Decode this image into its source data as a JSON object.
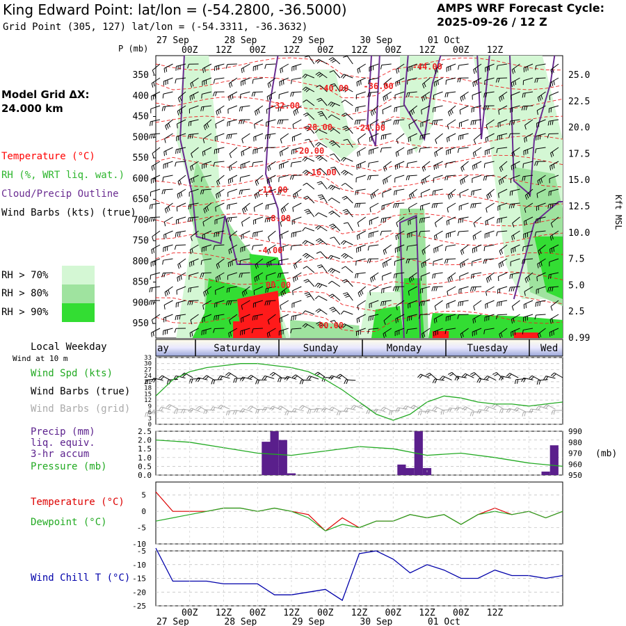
{
  "header": {
    "title": "King Edward Point:  lat/lon = (-54.2800, -36.5000)",
    "subtitle": "Grid Point (305, 127) lat/lon = (-54.3311, -36.3632)",
    "cycle_label": "AMPS WRF Forecast Cycle:",
    "cycle_value": "2025-09-26 / 12  Z"
  },
  "left_panel": {
    "grid_label": "Model Grid ΔX:",
    "grid_value": " 24.000 km",
    "legend_temperature": "Temperature (°C)",
    "legend_rh": "RH (%, WRT liq. wat.)",
    "legend_cloud": "Cloud/Precip Outline",
    "legend_wind": "Wind Barbs (kts) (true)",
    "rh_70": "RH > 70%",
    "rh_80": "RH > 80%",
    "rh_90": "RH > 90%",
    "local_weekday": "Local Weekday",
    "wind_10m": "Wind at 10 m"
  },
  "colors": {
    "temperature": "#ff0000",
    "rh_label": "#2db52d",
    "cloud_outline": "#6a2c91",
    "rh70": "#d4f7d4",
    "rh80": "#9fe39f",
    "rh90": "#33dd33",
    "precip": "#5a1f8c",
    "pressure": "#22aa22",
    "windchill": "#0000aa",
    "grid_barb": "#aaaaaa"
  },
  "time_axis": {
    "top_dates": [
      "27 Sep",
      "28 Sep",
      "29 Sep",
      "30 Sep",
      "01 Oct"
    ],
    "hours": [
      "00Z",
      "12Z",
      "00Z",
      "12Z",
      "00Z",
      "12Z",
      "00Z",
      "12Z",
      "00Z",
      "12Z"
    ],
    "bottom_dates": [
      "27 Sep",
      "28 Sep",
      "29 Sep",
      "30 Sep",
      "01 Oct"
    ],
    "weekdays": [
      "ay",
      "Saturday",
      "Sunday",
      "Monday",
      "Tuesday",
      "Wed"
    ]
  },
  "chart_data": [
    {
      "type": "heatmap",
      "title": "",
      "ylabel": "P (mb)",
      "ylabel_right": "Kft MSL",
      "pressure_ticks": [
        350,
        400,
        450,
        500,
        550,
        600,
        650,
        700,
        750,
        800,
        850,
        900,
        950
      ],
      "height_ticks": [
        "25.0",
        "22.5",
        "20.0",
        "17.5",
        "15.0",
        "12.5",
        "10.0",
        "7.5",
        "5.0",
        "2.5",
        "0.99"
      ],
      "temperature_contour_labels": [
        "-44.00",
        "-40.00",
        "-36.00",
        "-32.00",
        "-28.00",
        "-24.00",
        "-20.00",
        "-16.00",
        "-12.00",
        "-8.00",
        "-4.00",
        "00.00",
        "00.00"
      ]
    },
    {
      "type": "line",
      "title": "",
      "series_labels": [
        "Wind Spd (kts)",
        "Wind Barbs (true)",
        "Wind Barbs (grid)"
      ],
      "y_ticks": [
        0,
        3,
        6,
        9,
        12,
        15,
        18,
        21,
        24,
        27,
        30,
        33
      ],
      "x_hours": [
        0,
        6,
        12,
        18,
        24,
        30,
        36,
        42,
        48,
        54,
        60,
        66,
        72,
        78,
        84,
        90,
        96,
        102,
        108,
        114,
        120,
        126,
        132,
        138,
        144
      ],
      "series": [
        {
          "name": "Wind Spd (kts)",
          "values": [
            14,
            22,
            26,
            28,
            29,
            30,
            30,
            29,
            28,
            26,
            22,
            17,
            11,
            5,
            2,
            5,
            11,
            14,
            13,
            11,
            10,
            10,
            9,
            10,
            11
          ]
        }
      ],
      "ylim": [
        0,
        33
      ]
    },
    {
      "type": "bar",
      "title": "",
      "series_labels": [
        "Precip (mm)",
        "liq. equiv.",
        "3-hr accum",
        "Pressure (mb)"
      ],
      "y_ticks": [
        "0.0",
        "0.5",
        "1.0",
        "1.5",
        "2.0",
        "2.5"
      ],
      "y2_ticks": [
        950,
        960,
        970,
        980,
        990
      ],
      "y2_label": "(mb)",
      "bars": [
        {
          "hour": 39,
          "value": 1.9
        },
        {
          "hour": 42,
          "value": 2.5
        },
        {
          "hour": 45,
          "value": 2.0
        },
        {
          "hour": 48,
          "value": 0.1
        },
        {
          "hour": 87,
          "value": 0.6
        },
        {
          "hour": 90,
          "value": 0.4
        },
        {
          "hour": 93,
          "value": 2.5
        },
        {
          "hour": 96,
          "value": 0.4
        },
        {
          "hour": 138,
          "value": 0.2
        },
        {
          "hour": 141,
          "value": 1.7
        }
      ],
      "pressure": [
        {
          "hour": 0,
          "mb": 982
        },
        {
          "hour": 12,
          "mb": 980
        },
        {
          "hour": 24,
          "mb": 975
        },
        {
          "hour": 36,
          "mb": 970
        },
        {
          "hour": 48,
          "mb": 968
        },
        {
          "hour": 60,
          "mb": 972
        },
        {
          "hour": 72,
          "mb": 976
        },
        {
          "hour": 84,
          "mb": 974
        },
        {
          "hour": 96,
          "mb": 968
        },
        {
          "hour": 108,
          "mb": 970
        },
        {
          "hour": 120,
          "mb": 966
        },
        {
          "hour": 132,
          "mb": 961
        },
        {
          "hour": 144,
          "mb": 958
        }
      ],
      "ylim": [
        0,
        2.5
      ],
      "y2lim": [
        950,
        990
      ]
    },
    {
      "type": "line",
      "title": "",
      "series_labels": [
        "Temperature (°C)",
        "Dewpoint (°C)"
      ],
      "y_ticks": [
        5,
        0,
        -5,
        -10
      ],
      "x_hours": [
        0,
        6,
        12,
        18,
        24,
        30,
        36,
        42,
        48,
        54,
        60,
        66,
        72,
        78,
        84,
        90,
        96,
        102,
        108,
        114,
        120,
        126,
        132,
        138,
        144
      ],
      "series": [
        {
          "name": "Temperature (°C)",
          "values": [
            6,
            0,
            0,
            0,
            1,
            1,
            0,
            1,
            0,
            -1,
            -6,
            -2,
            -5,
            -3,
            -3,
            -1,
            -2,
            -1,
            -4,
            -1,
            1,
            -1,
            0,
            -2,
            0
          ]
        },
        {
          "name": "Dewpoint (°C)",
          "values": [
            -3,
            -2,
            -1,
            0,
            1,
            1,
            0,
            1,
            0,
            -2,
            -6,
            -4,
            -5,
            -3,
            -3,
            -1,
            -2,
            -1,
            -4,
            -1,
            0,
            -1,
            0,
            -2,
            0
          ]
        }
      ],
      "ylim": [
        -10,
        9
      ]
    },
    {
      "type": "line",
      "title": "",
      "series_labels": [
        "Wind Chill T (°C)"
      ],
      "y_ticks": [
        -5,
        -10,
        -15,
        -20,
        -25
      ],
      "x_hours": [
        0,
        6,
        12,
        18,
        24,
        30,
        36,
        42,
        48,
        54,
        60,
        66,
        72,
        78,
        84,
        90,
        96,
        102,
        108,
        114,
        120,
        126,
        132,
        138,
        144
      ],
      "series": [
        {
          "name": "Wind Chill T (°C)",
          "values": [
            -4,
            -16,
            -16,
            -16,
            -17,
            -17,
            -17,
            -21,
            -21,
            -20,
            -19,
            -23,
            -6,
            -5,
            -8,
            -13,
            -10,
            -12,
            -15,
            -15,
            -12,
            -14,
            -14,
            -15,
            -14
          ]
        }
      ],
      "ylim": [
        -25,
        -5
      ]
    }
  ]
}
